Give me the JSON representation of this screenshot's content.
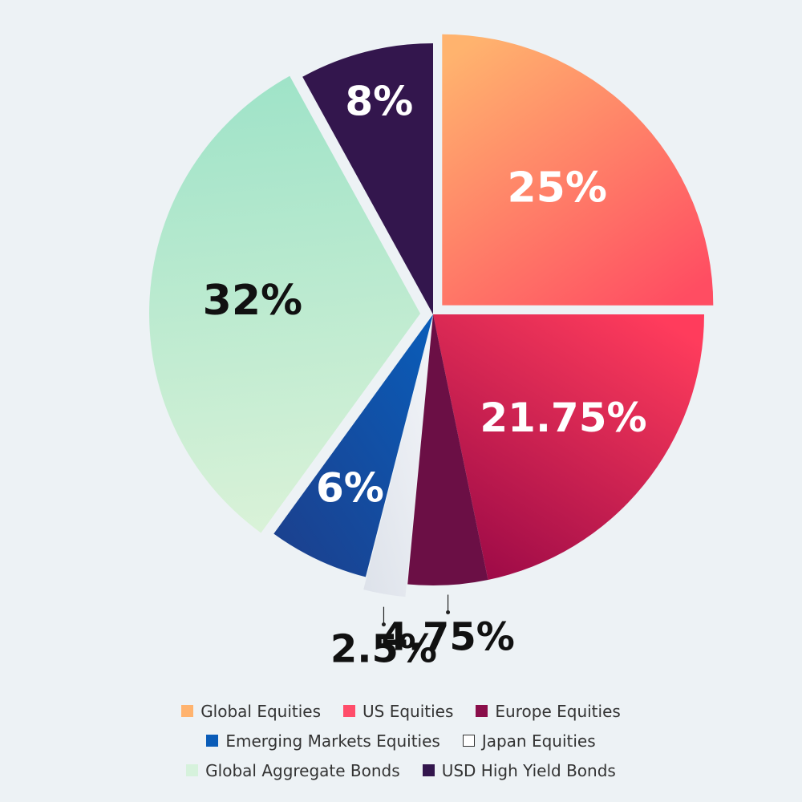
{
  "chart_data": {
    "type": "pie",
    "slices": [
      {
        "label": "Global Equities",
        "value": 25,
        "value_label": "25%",
        "color": "#ffb36e",
        "color_end": "#ff4d62",
        "label_color": "#ffffff",
        "exploded": true
      },
      {
        "label": "US Equities",
        "value": 21.75,
        "value_label": "21.75%",
        "color": "#ff3c5c",
        "color_end": "#9d0a47",
        "label_color": "#ffffff",
        "exploded": false
      },
      {
        "label": "Europe Equities",
        "value": 4.75,
        "value_label": "4.75%",
        "color": "#6b0f45",
        "color_end": "#6b0f45",
        "label_color": "#111111",
        "exploded": false,
        "label_outside": true
      },
      {
        "label": "Japan Equities",
        "value": 2.5,
        "value_label": "2.5%",
        "color": "#f2f4f8",
        "color_end": "#dde2ea",
        "label_color": "#111111",
        "exploded": true,
        "label_outside": true
      },
      {
        "label": "Emerging Markets Equities",
        "value": 6,
        "value_label": "6%",
        "color": "#0a5cb8",
        "color_end": "#1c3f8c",
        "label_color": "#ffffff",
        "exploded": false
      },
      {
        "label": "Global Aggregate Bonds",
        "value": 32,
        "value_label": "32%",
        "color": "#9fe3c8",
        "color_end": "#daf2d8",
        "label_color": "#111111",
        "exploded": true
      },
      {
        "label": "USD High Yield Bonds",
        "value": 8,
        "value_label": "8%",
        "color": "#33164d",
        "color_end": "#33164d",
        "label_color": "#ffffff",
        "exploded": false
      }
    ]
  },
  "legend": {
    "rows": [
      [
        {
          "label": "Global Equities",
          "color": "#ffb36e"
        },
        {
          "label": "US Equities",
          "color": "#ff4d6a"
        },
        {
          "label": "Europe Equities",
          "color": "#8a0e4a"
        }
      ],
      [
        {
          "label": "Emerging Markets Equities",
          "color": "#0a5cb8"
        },
        {
          "label": "Japan Equities",
          "color": "#ffffff",
          "outlined": true
        }
      ],
      [
        {
          "label": "Global Aggregate Bonds",
          "color": "#d6f2dc"
        },
        {
          "label": "USD High Yield Bonds",
          "color": "#33164d"
        }
      ]
    ]
  }
}
